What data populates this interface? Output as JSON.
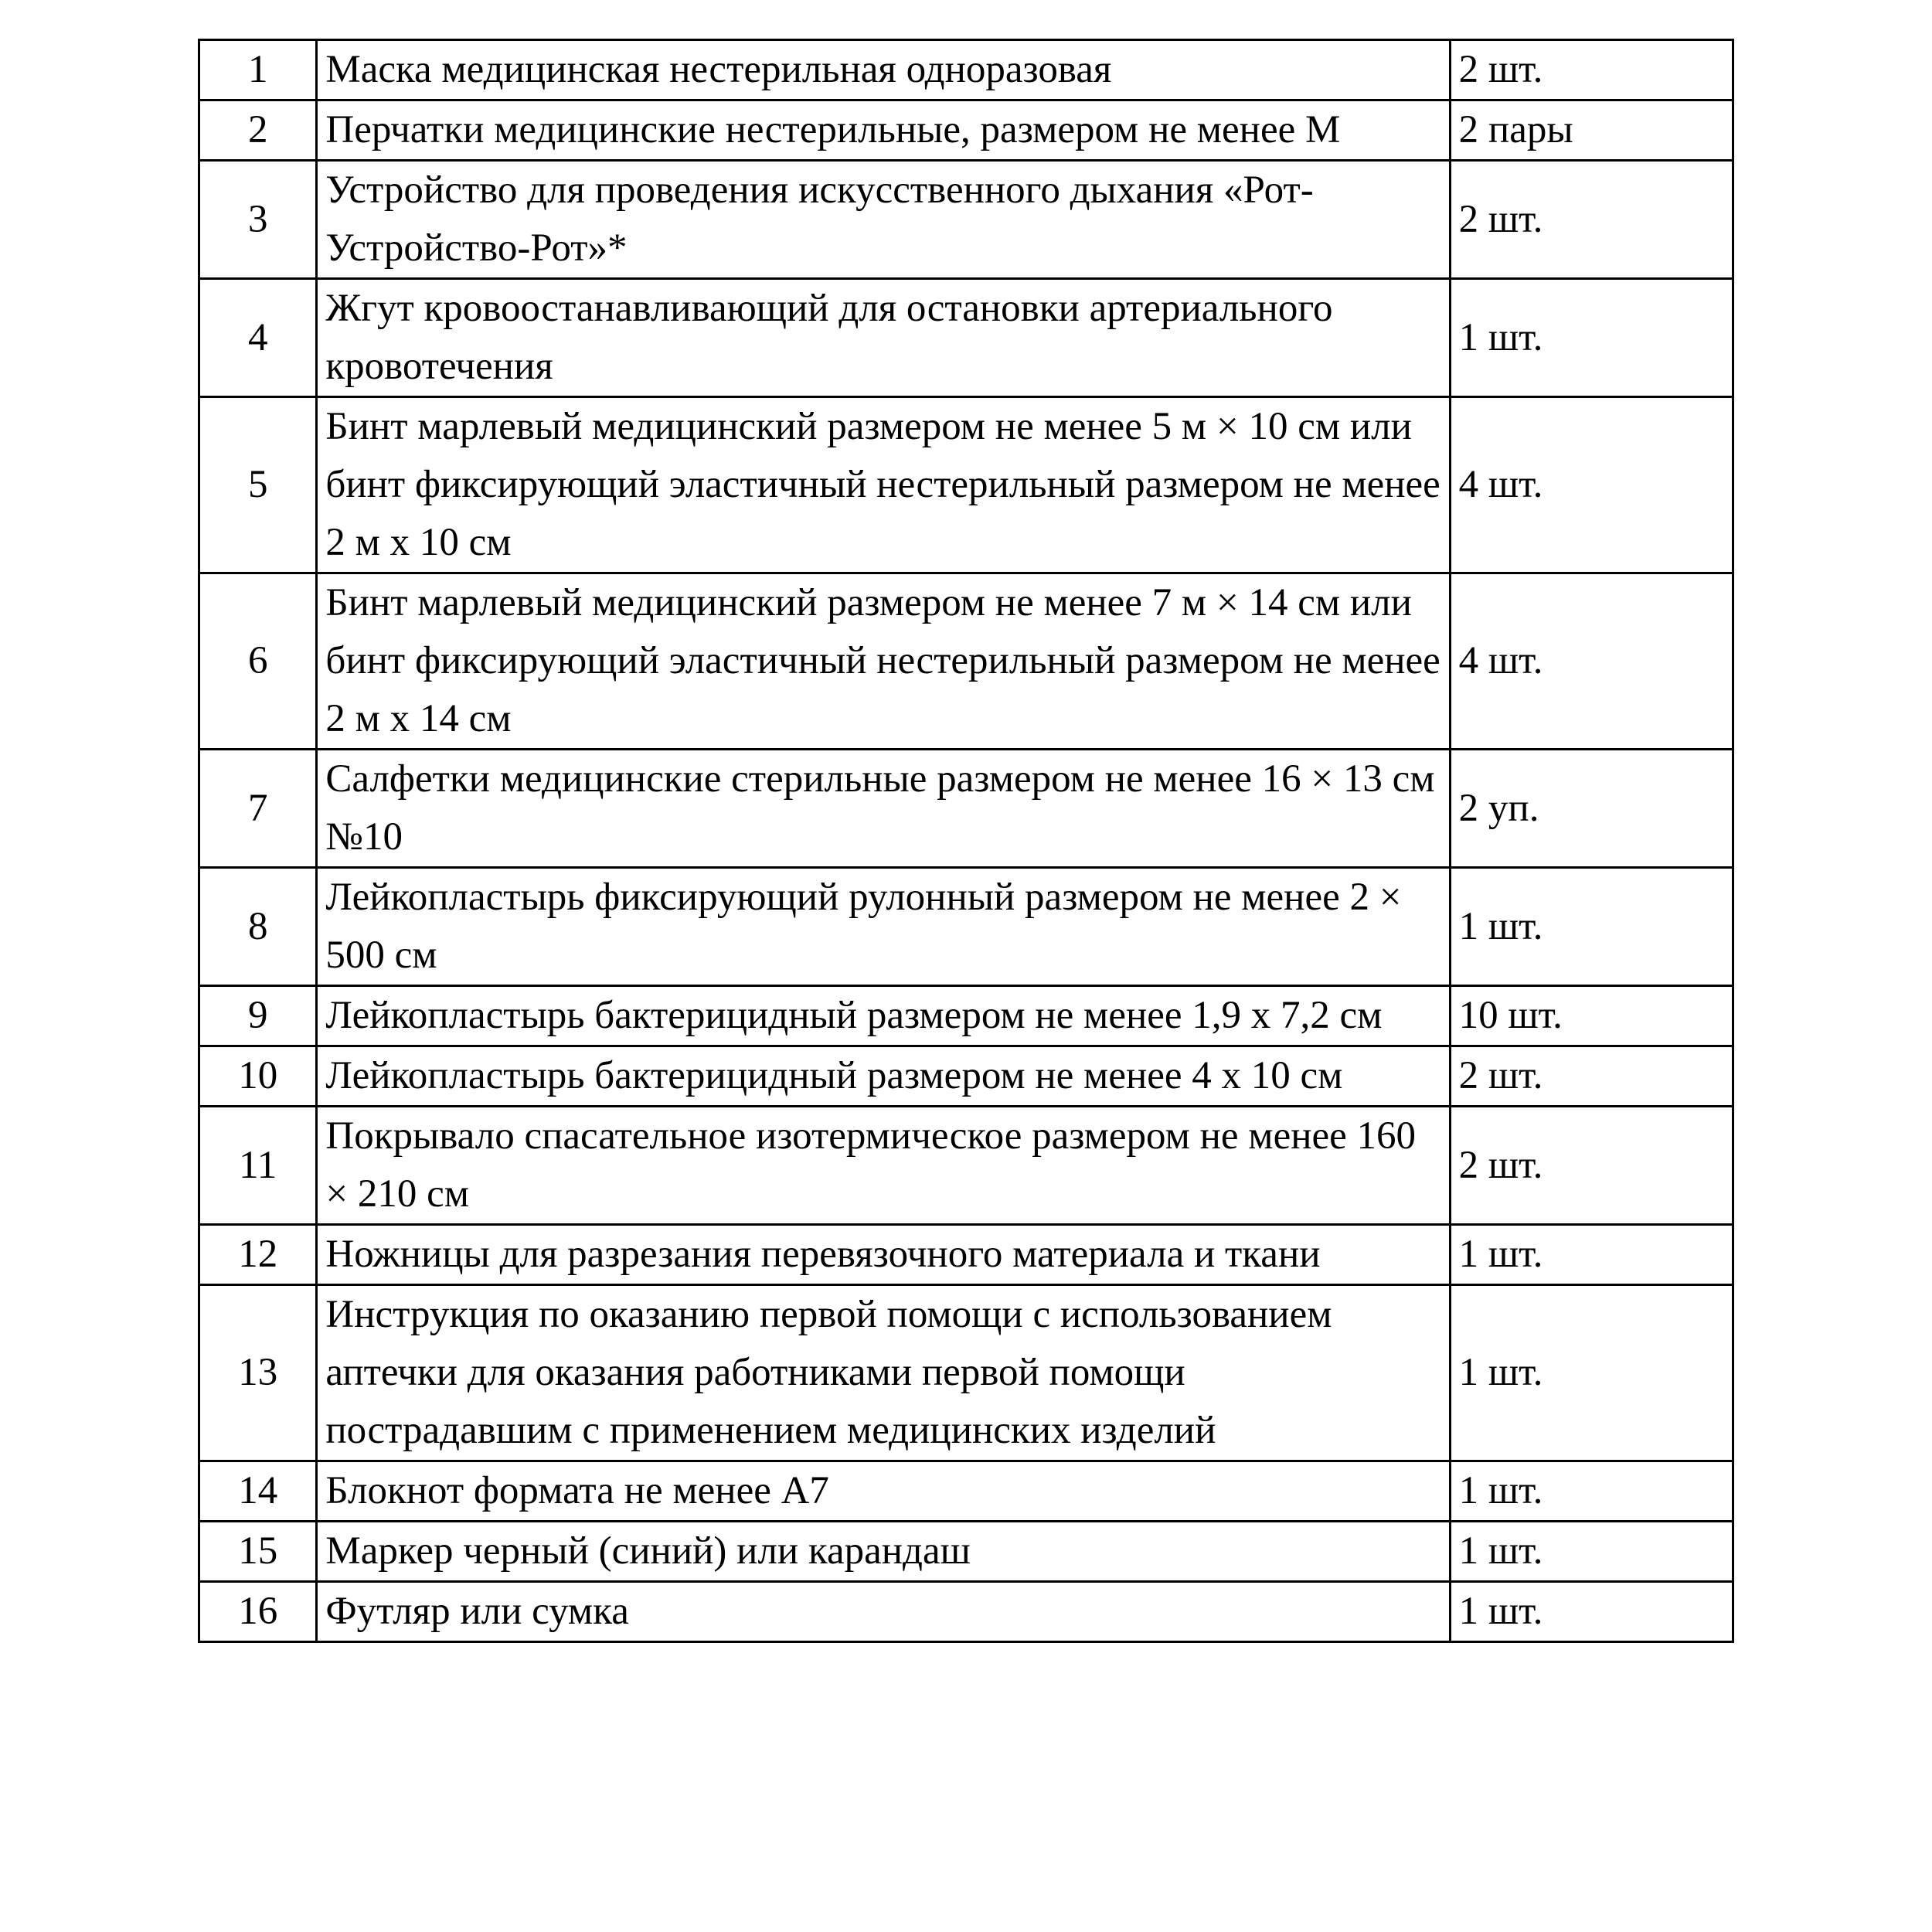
{
  "rows": [
    {
      "num": "1",
      "name": "Маска медицинская нестерильная одноразовая",
      "qty": "2 шт."
    },
    {
      "num": "2",
      "name": "Перчатки медицинские нестерильные, размером не менее М",
      "qty": "2 пары"
    },
    {
      "num": "3",
      "name": "Устройство для проведения искусственного дыхания «Рот-Устройство-Рот»*",
      "qty": "2 шт."
    },
    {
      "num": "4",
      "name": "Жгут кровоостанавливающий для остановки артериального кровотечения",
      "qty": "1 шт."
    },
    {
      "num": "5",
      "name": "Бинт марлевый медицинский размером не менее 5 м × 10 см или бинт фиксирующий эластичный нестерильный размером не менее 2 м х 10 см",
      "qty": "4 шт."
    },
    {
      "num": "6",
      "name": "Бинт марлевый медицинский размером не менее 7 м × 14 см или бинт фиксирующий эластичный нестерильный размером не менее 2 м х 14 см",
      "qty": "4 шт."
    },
    {
      "num": "7",
      "name": "Салфетки медицинские стерильные размером не менее 16 × 13 см №10",
      "qty": "2 уп."
    },
    {
      "num": "8",
      "name": "Лейкопластырь фиксирующий рулонный размером не менее 2 × 500 см",
      "qty": "1 шт."
    },
    {
      "num": "9",
      "name": "Лейкопластырь бактерицидный размером не менее 1,9 х 7,2 см",
      "qty": "10 шт."
    },
    {
      "num": "10",
      "name": "Лейкопластырь бактерицидный размером не менее 4 х 10 см",
      "qty": "2 шт."
    },
    {
      "num": "11",
      "name": "Покрывало спасательное изотермическое размером не менее 160 × 210 см",
      "qty": "2 шт."
    },
    {
      "num": "12",
      "name": "Ножницы для разрезания перевязочного материала и ткани",
      "qty": "1 шт."
    },
    {
      "num": "13",
      "name": "Инструкция по оказанию первой помощи с использованием аптечки для оказания работниками первой помощи пострадавшим с применением медицинских изделий",
      "qty": "1 шт."
    },
    {
      "num": "14",
      "name": "Блокнот формата не менее А7",
      "qty": "1 шт."
    },
    {
      "num": "15",
      "name": "Маркер черный (синий) или карандаш",
      "qty": "1 шт."
    },
    {
      "num": "16",
      "name": "Футляр или сумка",
      "qty": "1 шт."
    }
  ]
}
